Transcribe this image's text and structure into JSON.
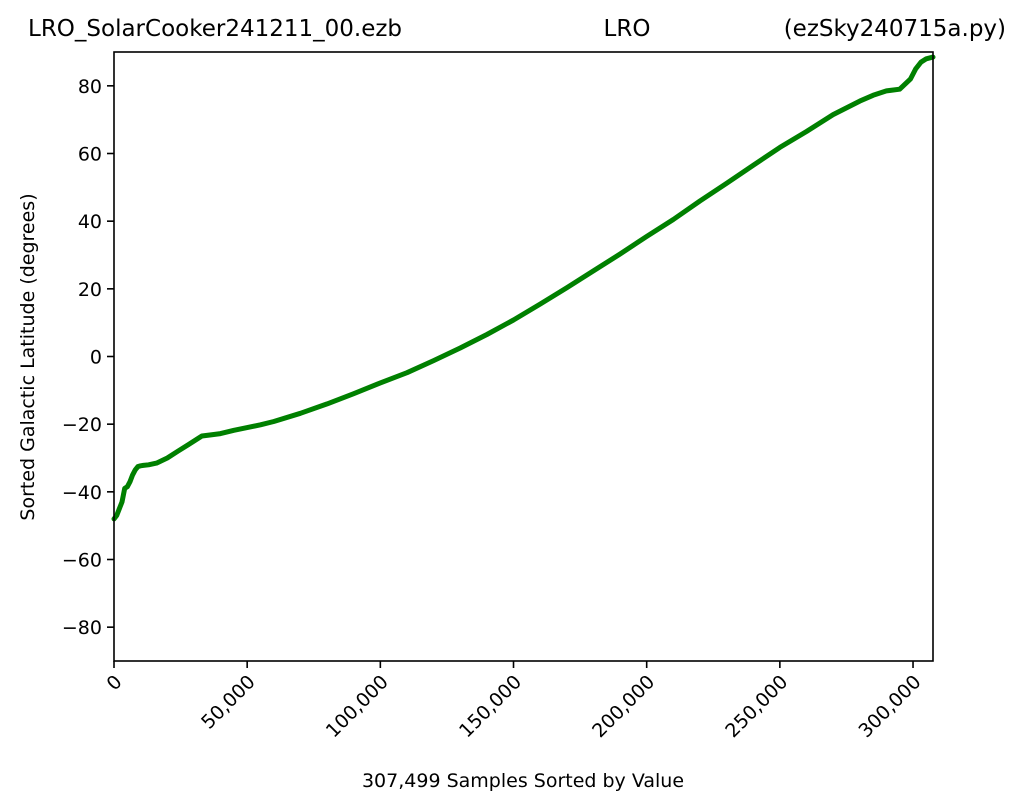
{
  "chart_data": {
    "type": "line",
    "title_left": "LRO_SolarCooker241211_00.ezb",
    "title_center": "LRO",
    "title_right": "(ezSky240715a.py)",
    "xlabel": "307,499 Samples Sorted by Value",
    "ylabel": "Sorted Galactic Latitude (degrees)",
    "xlim": [
      0,
      307499
    ],
    "ylim": [
      -90,
      90
    ],
    "x_ticks": [
      {
        "value": 0,
        "label": "0"
      },
      {
        "value": 50000,
        "label": "50,000"
      },
      {
        "value": 100000,
        "label": "100,000"
      },
      {
        "value": 150000,
        "label": "150,000"
      },
      {
        "value": 200000,
        "label": "200,000"
      },
      {
        "value": 250000,
        "label": "250,000"
      },
      {
        "value": 300000,
        "label": "300,000"
      }
    ],
    "y_ticks": [
      {
        "value": 80,
        "label": "80"
      },
      {
        "value": 60,
        "label": "60"
      },
      {
        "value": 40,
        "label": "40"
      },
      {
        "value": 20,
        "label": "20"
      },
      {
        "value": 0,
        "label": "0"
      },
      {
        "value": -20,
        "label": "−20"
      },
      {
        "value": -40,
        "label": "−40"
      },
      {
        "value": -60,
        "label": "−60"
      },
      {
        "value": -80,
        "label": "−80"
      }
    ],
    "grid": false,
    "line_color": "#008000",
    "series": [
      {
        "x": [
          0,
          1000,
          2000,
          3000,
          4000,
          5000,
          6000,
          7000,
          8000,
          9000,
          10000,
          11000,
          13000,
          16000,
          20000,
          24000,
          28000,
          31000,
          33000,
          36000,
          40000,
          45000,
          50000,
          55000,
          60000,
          70000,
          80000,
          90000,
          100000,
          110000,
          120000,
          130000,
          140000,
          150000,
          160000,
          170000,
          180000,
          190000,
          200000,
          210000,
          220000,
          230000,
          240000,
          250000,
          260000,
          270000,
          280000,
          285000,
          290000,
          295000,
          299000,
          301000,
          303000,
          305000,
          307499
        ],
        "y": [
          -48,
          -47,
          -45,
          -43,
          -39,
          -38.5,
          -37,
          -35,
          -33.5,
          -32.5,
          -32.3,
          -32.2,
          -32,
          -31.5,
          -30,
          -28,
          -26,
          -24.5,
          -23.5,
          -23.2,
          -22.8,
          -21.8,
          -21,
          -20.2,
          -19.2,
          -16.8,
          -14,
          -11,
          -7.8,
          -4.8,
          -1.2,
          2.5,
          6.5,
          10.8,
          15.5,
          20.3,
          25.3,
          30.3,
          35.5,
          40.5,
          46,
          51.2,
          56.5,
          61.8,
          66.5,
          71.5,
          75.5,
          77.2,
          78.5,
          79,
          82,
          85,
          87,
          88,
          88.5
        ]
      }
    ]
  }
}
